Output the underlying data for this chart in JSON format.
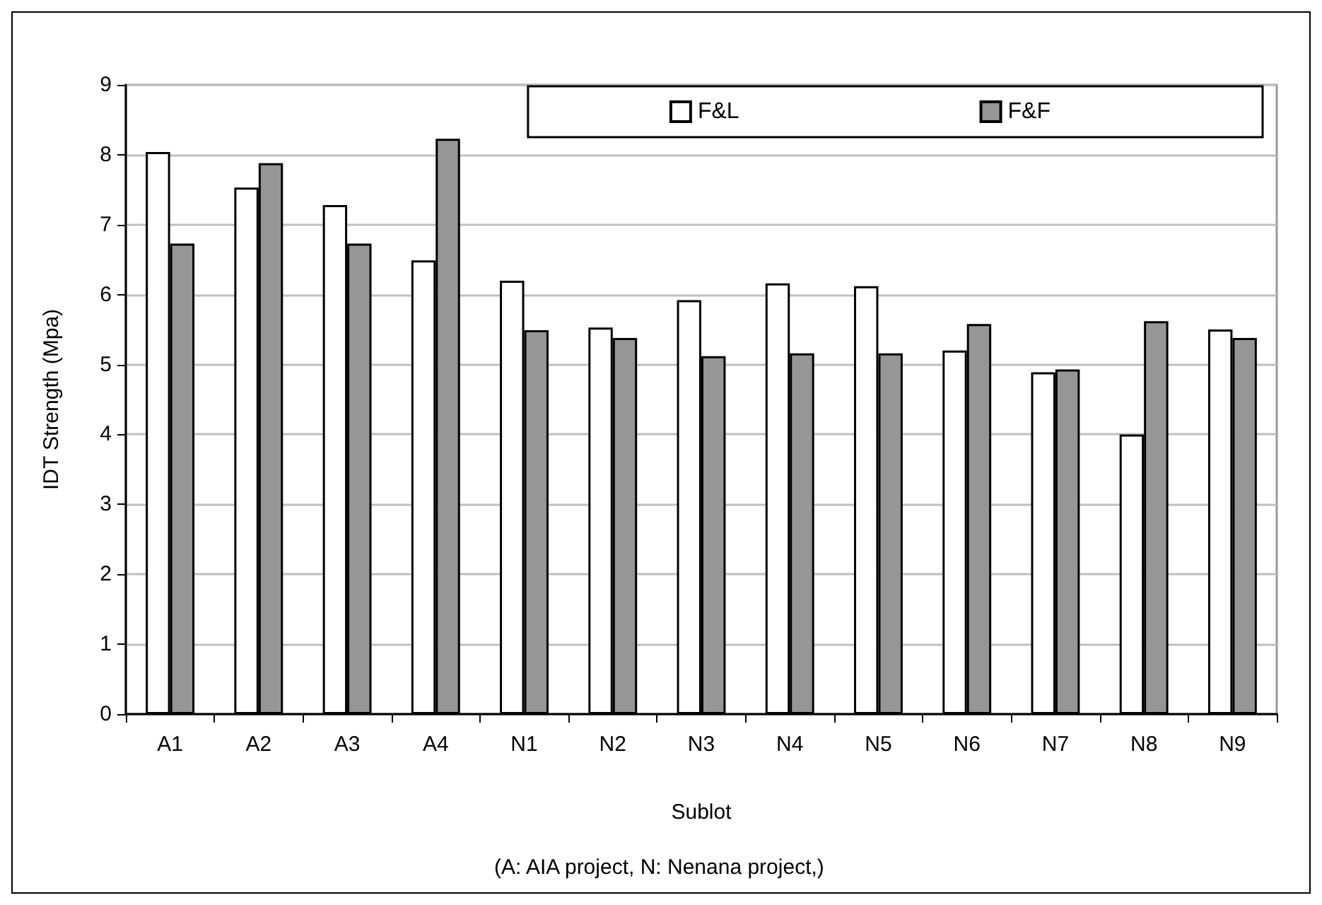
{
  "chart_data": {
    "type": "bar",
    "xlabel": "Sublot",
    "ylabel": "IDT Strength (Mpa)",
    "annotations": [
      "(A: AIA project, N: Nenana project,)"
    ],
    "categories": [
      "A1",
      "A2",
      "A3",
      "A4",
      "N1",
      "N2",
      "N3",
      "N4",
      "N5",
      "N6",
      "N7",
      "N8",
      "N9"
    ],
    "series": [
      {
        "name": "F&L",
        "color": "#ffffff",
        "values": [
          8.04,
          7.53,
          7.28,
          6.49,
          6.2,
          5.53,
          5.92,
          6.16,
          6.12,
          5.2,
          4.89,
          4.0,
          5.5
        ]
      },
      {
        "name": "F&F",
        "color": "#969696",
        "values": [
          6.73,
          7.88,
          6.73,
          8.23,
          5.49,
          5.38,
          5.12,
          5.16,
          5.16,
          5.58,
          4.93,
          5.62,
          5.38
        ]
      }
    ],
    "ylim": [
      0,
      9
    ],
    "yticks": [
      0,
      1,
      2,
      3,
      4,
      5,
      6,
      7,
      8,
      9
    ],
    "grid": "y",
    "legend": "top right"
  }
}
